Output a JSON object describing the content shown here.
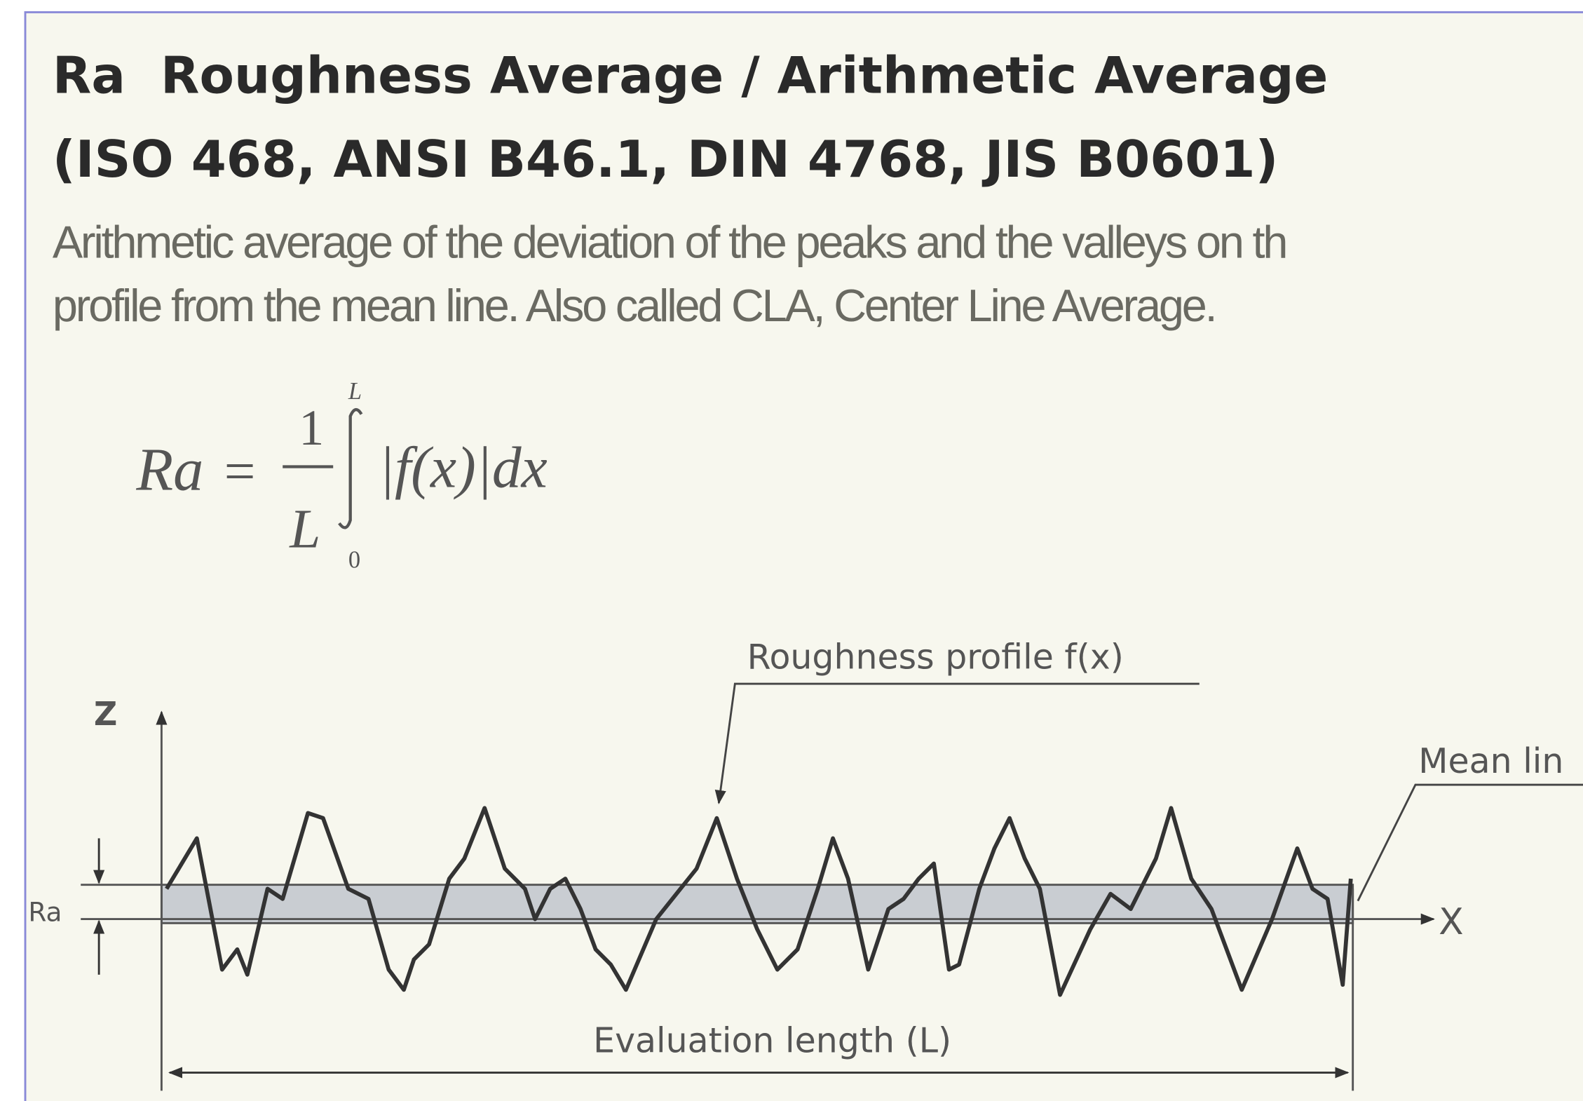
{
  "header": {
    "title": "Ra  Roughness Average / Arithmetic Average",
    "standards": "(ISO 468, ANSI B46.1, DIN 4768, JIS B0601)"
  },
  "description": [
    "Arithmetic average of the deviation of the peaks and the valleys on th",
    "profile from the mean line. Also called CLA, Center Line Average."
  ],
  "formula": {
    "lhs": "Ra",
    "equals": "=",
    "numerator": "1",
    "denominator": "L",
    "upper": "L",
    "lower": "0",
    "integrand": "|f(x)|dx"
  },
  "diagram": {
    "profile_label": "Roughness profile f(x)",
    "z_axis": "Z",
    "x_axis": "X",
    "ra_label": "Ra",
    "mean_line_label": "Mean lin",
    "length_label": "Evaluation length (L)"
  }
}
